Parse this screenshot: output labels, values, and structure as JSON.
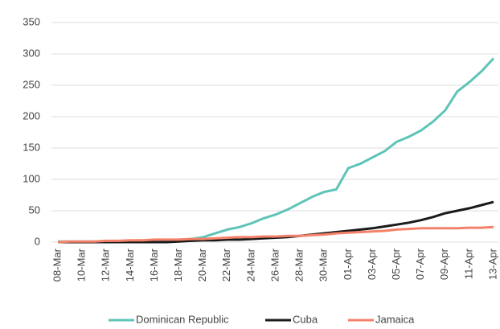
{
  "chart_data": {
    "type": "line",
    "categories": [
      "08-Mar",
      null,
      "10-Mar",
      null,
      "12-Mar",
      null,
      "14-Mar",
      null,
      "16-Mar",
      null,
      "18-Mar",
      null,
      "20-Mar",
      null,
      "22-Mar",
      null,
      "24-Mar",
      null,
      "26-Mar",
      null,
      "28-Mar",
      null,
      "30-Mar",
      null,
      "01-Apr",
      null,
      "03-Apr",
      null,
      "05-Apr",
      null,
      "07-Apr",
      null,
      "09-Apr",
      null,
      "11-Apr",
      null,
      "13-Apr"
    ],
    "series": [
      {
        "name": "Dominican Republic",
        "color": "#5ec4b8",
        "values": [
          1,
          1,
          1,
          1,
          1,
          1,
          2,
          2,
          3,
          3,
          4,
          5,
          8,
          14,
          20,
          24,
          30,
          38,
          44,
          52,
          62,
          72,
          80,
          84,
          118,
          125,
          135,
          145,
          160,
          168,
          178,
          192,
          210,
          240,
          255,
          272,
          293
        ]
      },
      {
        "name": "Cuba",
        "color": "#1a1a1a",
        "values": [
          0,
          0,
          0,
          0,
          0,
          0,
          0,
          0,
          0,
          0,
          1,
          2,
          3,
          3,
          4,
          4,
          5,
          6,
          7,
          8,
          10,
          12,
          14,
          16,
          18,
          20,
          22,
          25,
          28,
          31,
          35,
          40,
          46,
          50,
          54,
          59,
          64
        ]
      },
      {
        "name": "Jamaica",
        "color": "#f4826a",
        "values": [
          0,
          1,
          1,
          1,
          2,
          2,
          3,
          3,
          4,
          4,
          4,
          5,
          5,
          6,
          7,
          8,
          8,
          9,
          9,
          10,
          10,
          11,
          12,
          14,
          15,
          16,
          17,
          18,
          20,
          21,
          22,
          22,
          22,
          22,
          23,
          23,
          24
        ]
      }
    ],
    "ylim": [
      0,
      350
    ],
    "yticks": [
      0,
      50,
      100,
      150,
      200,
      250,
      300,
      350
    ],
    "grid": true,
    "legend": "bottom"
  }
}
